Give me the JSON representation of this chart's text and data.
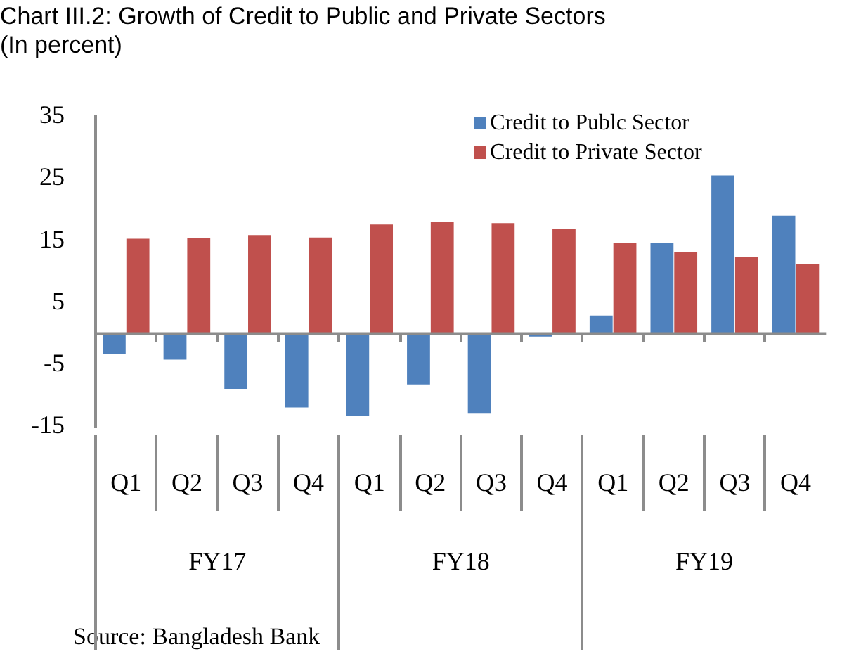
{
  "chart_data": {
    "type": "bar",
    "title": "Chart III.2: Growth of Credit to Public and Private Sectors",
    "subtitle": "(In percent)",
    "categories": [
      "Q1",
      "Q2",
      "Q3",
      "Q4",
      "Q1",
      "Q2",
      "Q3",
      "Q4",
      "Q1",
      "Q2",
      "Q3",
      "Q4"
    ],
    "series": [
      {
        "name": "Credit to Publc Sector",
        "color": "#4f81bd",
        "values": [
          -3.3,
          -4.2,
          -8.9,
          -11.9,
          -13.3,
          -8.2,
          -12.9,
          -0.5,
          2.9,
          14.6,
          25.5,
          19.0
        ]
      },
      {
        "name": "Credit to Private Sector",
        "color": "#c0504d",
        "values": [
          15.3,
          15.4,
          15.9,
          15.5,
          17.6,
          18.0,
          17.8,
          16.9,
          14.6,
          13.2,
          12.4,
          11.2
        ]
      }
    ],
    "ylim": [
      -15,
      35
    ],
    "yticks": [
      -15,
      -5,
      5,
      15,
      25,
      35
    ],
    "grid": false,
    "legend": "top right",
    "annotations": [
      "FY17",
      "FY18",
      "FY19",
      "Source: Bangladesh Bank"
    ]
  }
}
